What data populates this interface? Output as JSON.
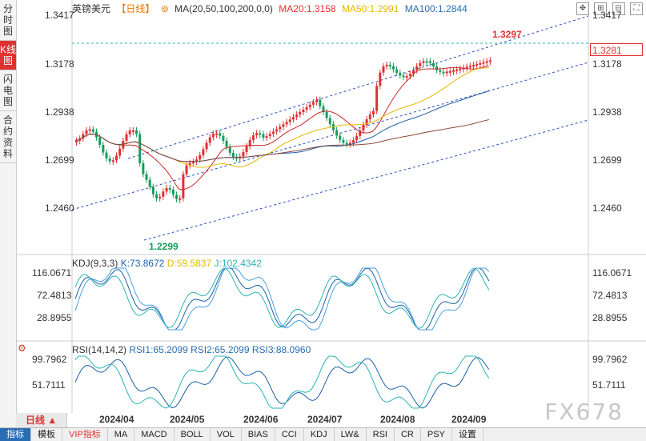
{
  "left_tabs": [
    "分时图",
    "K线图",
    "闪电图",
    "合约资料"
  ],
  "header": {
    "symbol": "英镑美元",
    "period": "【日线】",
    "ma_label": "MA(20,50,100,200,0,0)",
    "ma20": "MA20:1.3158",
    "ma50": "MA50:1.2991",
    "ma100": "MA100:1.2844"
  },
  "price_axis": [
    "1.3417",
    "1.3178",
    "1.2938",
    "1.2699",
    "1.2460"
  ],
  "last_price": "1.3281",
  "high_label": "1.3297",
  "low_label": "1.2299",
  "kdj": {
    "title": "KDJ(9,3,3)",
    "k": "K:73.8672",
    "d": "D:59.5837",
    "j": "J:102.4342",
    "axis": [
      "116.0671",
      "72.4813",
      "28.8955"
    ]
  },
  "rsi": {
    "title": "RSI(14,14,2)",
    "rsi1": "RSI1:65.2099",
    "rsi2": "RSI2:65.2099",
    "rsi3": "RSI3:88.0960",
    "axis": [
      "99.7962",
      "51.7111"
    ]
  },
  "dates": [
    "2024/04",
    "2024/05",
    "2024/06",
    "2024/07",
    "2024/08",
    "2024/09"
  ],
  "period_button": "日线",
  "bottom_tabs": [
    "指标",
    "模板",
    "VIP指标",
    "MA",
    "MACD",
    "BOLL",
    "VOL",
    "BIAS",
    "CCI",
    "KDJ",
    "LW&",
    "RSI",
    "CR",
    "PSY",
    "设置"
  ],
  "watermark": "FX678",
  "colors": {
    "up": "#e03131",
    "down": "#1a9c5a",
    "ma20": "#c92a2a",
    "ma50": "#e6b800",
    "ma100": "#1c5fa8",
    "ma200": "#8b4a3a"
  }
}
